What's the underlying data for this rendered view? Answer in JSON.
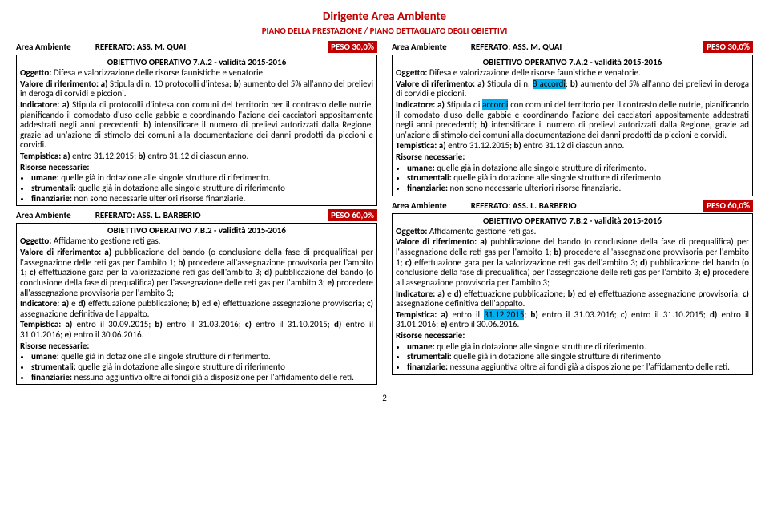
{
  "header": {
    "title": "Dirigente Area Ambiente",
    "subtitle": "PIANO DELLA PRESTAZIONE / PIANO DETTAGLIATO DEGLI OBIETTIVI"
  },
  "left": {
    "block1": {
      "area": "Area Ambiente",
      "referato": "REFERATO: ASS. M. QUAI",
      "peso": "PESO 30,0%",
      "obj_title": "OBIETTIVO OPERATIVO 7.A.2 - validità 2015-2016",
      "oggetto_label": "Oggetto:",
      "oggetto_text": " Difesa e valorizzazione delle risorse faunistiche e venatorie.",
      "valore_label": "Valore di riferimento: a)",
      "valore_text": " Stipula di n. 10 protocolli d'intesa; ",
      "valore_b": "b)",
      "valore_text2": " aumento del 5% all'anno dei prelievi in deroga di corvidi e piccioni.",
      "indicatore_label": "Indicatore: a)",
      "indicatore_text": " Stipula di protocolli d'intesa con comuni del territorio per il contrasto delle nutrie, pianificando il comodato d'uso delle gabbie e coordinando l'azione dei cacciatori appositamente addestrati negli anni precedenti; ",
      "indicatore_b": "b)",
      "indicatore_text2": " intensificare il numero di prelievi autorizzati dalla Regione, grazie ad un'azione di stimolo dei comuni alla documentazione dei danni prodotti da piccioni e corvidi.",
      "temp_label": "Tempistica: a)",
      "temp_text": " entro 31.12.2015; ",
      "temp_b": "b)",
      "temp_text2": " entro 31.12 di ciascun anno.",
      "risorse_label": "Risorse necessarie:",
      "umane_label": "umane:",
      "umane_text": " quelle già in dotazione alle singole strutture di riferimento.",
      "strum_label": "strumentali:",
      "strum_text": " quelle già in dotazione alle singole strutture di riferimento",
      "fin_label": "finanziarie:",
      "fin_text": " non sono necessarie ulteriori risorse finanziarie."
    },
    "block2": {
      "area": "Area Ambiente",
      "referato": "REFERATO: ASS. L. BARBERIO",
      "peso": "PESO 60,0%",
      "obj_title": "OBIETTIVO OPERATIVO 7.B.2 - validità 2015-2016",
      "oggetto_label": "Oggetto:",
      "oggetto_text": " Affidamento gestione reti gas.",
      "valore_label": "Valore di riferimento: a)",
      "valore_text": " pubblicazione del bando (o conclusione della fase di prequalifica) per l'assegnazione delle reti gas per l'ambito 1; ",
      "valore_b": "b)",
      "valore_text2": " procedere all'assegnazione provvisoria per l'ambito 1; ",
      "valore_c": "c)",
      "valore_text3": " effettuazione gara per la valorizzazione reti gas dell'ambito 3; ",
      "valore_d": "d)",
      "valore_text4": " pubblicazione del bando (o conclusione della fase di prequalifica) per l'assegnazione delle reti gas per l'ambito 3; ",
      "valore_e": "e)",
      "valore_text5": " procedere all'assegnazione provvisoria per l'ambito 3;",
      "indicatore_label": "Indicatore: a)",
      "indicatore_text": " e ",
      "indicatore_d": "d)",
      "indicatore_text2": " effettuazione pubblicazione; ",
      "indicatore_b": "b)",
      "indicatore_text3": " ed ",
      "indicatore_e": "e)",
      "indicatore_text4": " effettuazione assegnazione provvisoria; ",
      "indicatore_c": "c)",
      "indicatore_text5": " assegnazione definitiva dell'appalto.",
      "temp_label": "Tempistica: a)",
      "temp_text": " entro il 30.09.2015; ",
      "temp_b": "b)",
      "temp_text2": " entro il 31.03.2016; ",
      "temp_c": "c)",
      "temp_text3": " entro il 31.10.2015; ",
      "temp_d": "d)",
      "temp_text4": " entro il 31.01.2016; ",
      "temp_e": "e)",
      "temp_text5": " entro il 30.06.2016.",
      "risorse_label": "Risorse necessarie:",
      "umane_label": "umane:",
      "umane_text": " quelle già in dotazione alle singole strutture di riferimento.",
      "strum_label": "strumentali:",
      "strum_text": " quelle già in dotazione alle singole strutture di riferimento",
      "fin_label": "finanziarie:",
      "fin_text": " nessuna aggiuntiva oltre ai fondi già a disposizione per l'affidamento delle reti."
    }
  },
  "right": {
    "block1": {
      "area": "Area Ambiente",
      "referato": "REFERATO: ASS. M. QUAI",
      "peso": "PESO 30,0%",
      "obj_title": "OBIETTIVO OPERATIVO 7.A.2 - validità 2015-2016",
      "oggetto_label": "Oggetto:",
      "oggetto_text": " Difesa e valorizzazione delle risorse faunistiche e venatorie.",
      "valore_label": "Valore di riferimento: a)",
      "valore_text": " Stipula di n. ",
      "hl1": "8 accordi",
      "valore_text_after": "; ",
      "valore_b": "b)",
      "valore_text2": " aumento del 5% all'anno dei prelievi in deroga di corvidi e piccioni.",
      "indicatore_label": "Indicatore: a)",
      "indicatore_text": " Stipula di ",
      "hl2": "accordi",
      "indicatore_text_after": " con comuni del territorio per il contrasto delle nutrie, pianificando il comodato d'uso delle gabbie e coordinando l'azione dei cacciatori appositamente addestrati negli anni precedenti; ",
      "indicatore_b": "b)",
      "indicatore_text2": " intensificare il numero di prelievi autorizzati dalla Regione, grazie ad un'azione di stimolo dei comuni alla documentazione dei danni prodotti da piccioni e corvidi.",
      "temp_label": "Tempistica: a)",
      "temp_text": " entro 31.12.2015; ",
      "temp_b": "b)",
      "temp_text2": " entro 31.12 di ciascun anno.",
      "risorse_label": "Risorse necessarie:",
      "umane_label": "umane:",
      "umane_text": " quelle già in dotazione alle singole strutture di riferimento.",
      "strum_label": "strumentali:",
      "strum_text": " quelle già in dotazione alle singole strutture di riferimento",
      "fin_label": "finanziarie:",
      "fin_text": " non sono necessarie ulteriori risorse finanziarie."
    },
    "block2": {
      "area": "Area Ambiente",
      "referato": "REFERATO: ASS. L. BARBERIO",
      "peso": "PESO 60,0%",
      "obj_title": "OBIETTIVO OPERATIVO 7.B.2 - validità 2015-2016",
      "oggetto_label": "Oggetto:",
      "oggetto_text": " Affidamento gestione reti gas.",
      "valore_label": "Valore di riferimento: a)",
      "valore_text": " pubblicazione del bando (o conclusione della fase di prequalifica) per l'assegnazione delle reti gas per l'ambito 1; ",
      "valore_b": "b)",
      "valore_text2": " procedere all'assegnazione provvisoria per l'ambito 1; ",
      "valore_c": "c)",
      "valore_text3": " effettuazione gara per la valorizzazione reti gas dell'ambito 3; ",
      "valore_d": "d)",
      "valore_text4": " pubblicazione del bando (o conclusione della fase di prequalifica) per l'assegnazione delle reti gas per l'ambito 3; ",
      "valore_e": "e)",
      "valore_text5": " procedere all'assegnazione provvisoria per l'ambito 3;",
      "indicatore_label": "Indicatore: a)",
      "indicatore_text": " e ",
      "indicatore_d": "d)",
      "indicatore_text2": " effettuazione pubblicazione; ",
      "indicatore_b": "b)",
      "indicatore_text3": " ed ",
      "indicatore_e": "e)",
      "indicatore_text4": " effettuazione assegnazione provvisoria; ",
      "indicatore_c": "c)",
      "indicatore_text5": " assegnazione definitiva dell'appalto.",
      "temp_label": "Tempistica: a)",
      "temp_text": " entro il ",
      "hl1": "31.12.2015",
      "temp_after1": "; ",
      "temp_b": "b)",
      "temp_text2": " entro il 31.03.2016; ",
      "temp_c": "c)",
      "temp_text3": " entro il 31.10.2015; ",
      "temp_d": "d)",
      "temp_text4": " entro il 31.01.2016; ",
      "temp_e": "e)",
      "temp_text5": " entro il 30.06.2016.",
      "risorse_label": "Risorse necessarie:",
      "umane_label": "umane:",
      "umane_text": " quelle già in dotazione alle singole strutture di riferimento.",
      "strum_label": "strumentali:",
      "strum_text": " quelle già in dotazione alle singole strutture di riferimento",
      "fin_label": "finanziarie:",
      "fin_text": " nessuna aggiuntiva oltre ai fondi già a disposizione per l'affidamento delle reti."
    }
  },
  "page_number": "2"
}
